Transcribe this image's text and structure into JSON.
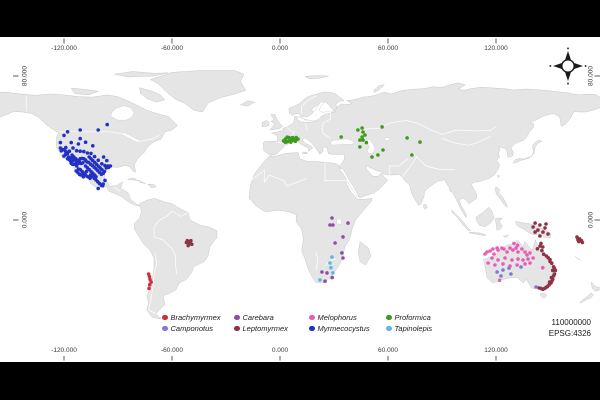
{
  "footer": {
    "scale": "110000000",
    "crs": "EPSG:4326"
  },
  "icons": {
    "compass": "compass-rose"
  },
  "chart_data": {
    "type": "scatter",
    "subtype": "geographic-point-map",
    "title": "",
    "projection": "EPSG:4326 equirectangular",
    "basemap": "world countries, light gray fill with white borders",
    "legend_position": "bottom",
    "axes": {
      "x_tick_values": [
        -120,
        -60,
        0,
        60,
        120
      ],
      "x_tick_labels": [
        "-120.000",
        "-60.000",
        "0.000",
        "60.000",
        "120.000"
      ],
      "y_tick_values": [
        80,
        0
      ],
      "y_tick_labels": [
        "80.000",
        "0.000"
      ],
      "x_range": [
        -155,
        178
      ],
      "y_range": [
        -82,
        102
      ]
    },
    "series": [
      {
        "name": "Brachymyrmex",
        "color": "#cf2e3d",
        "points": [
          [
            -73,
            -30
          ],
          [
            -72.5,
            -31.5
          ],
          [
            -72.2,
            -33
          ],
          [
            -71.6,
            -34.5
          ],
          [
            -72.4,
            -36
          ],
          [
            -72.8,
            -38
          ]
        ]
      },
      {
        "name": "Camponotus",
        "color": "#7d7ad2",
        "points": [
          [
            120.6,
            -28.9
          ],
          [
            123.9,
            -27.8
          ],
          [
            127.2,
            -26.7
          ],
          [
            133.9,
            -26.1
          ],
          [
            122.8,
            -31.1
          ],
          [
            128.3,
            -30
          ],
          [
            142.2,
            -37.2
          ]
        ]
      },
      {
        "name": "Carebara",
        "color": "#8d4fa1",
        "points": [
          [
            28.9,
            1.1
          ],
          [
            27.8,
            -2.8
          ],
          [
            29.4,
            -2.8
          ],
          [
            37.8,
            -1.7
          ],
          [
            35,
            -9.4
          ],
          [
            30.6,
            -12.8
          ],
          [
            34.4,
            -18.3
          ],
          [
            35,
            -21.1
          ],
          [
            23.3,
            -28.9
          ],
          [
            26.1,
            -29.4
          ],
          [
            29,
            -32
          ],
          [
            25,
            -34
          ]
        ]
      },
      {
        "name": "Leptomyrmex",
        "color": "#8c3346",
        "points": [
          [
            -51.5,
            -11.5
          ],
          [
            -49.5,
            -11.5
          ],
          [
            -52,
            -12.5
          ],
          [
            -50,
            -13
          ],
          [
            -51,
            -14.2
          ],
          [
            -49,
            -13.5
          ],
          [
            -50.5,
            -12.3
          ],
          [
            141.7,
            -1.7
          ],
          [
            144.4,
            -2.8
          ],
          [
            147.2,
            -4.4
          ],
          [
            143.3,
            -5.6
          ],
          [
            146.1,
            -6.7
          ],
          [
            148.9,
            -7.8
          ],
          [
            141.7,
            -6.7
          ],
          [
            144.4,
            -8.9
          ],
          [
            147.8,
            -2.2
          ],
          [
            140.6,
            -3.9
          ],
          [
            145,
            -13
          ],
          [
            146,
            -15
          ],
          [
            145.5,
            -17
          ],
          [
            146.5,
            -19
          ],
          [
            148,
            -20
          ],
          [
            149,
            -21
          ],
          [
            150,
            -22
          ],
          [
            151,
            -24
          ],
          [
            152,
            -26
          ],
          [
            152.5,
            -27
          ],
          [
            153,
            -28
          ],
          [
            152.5,
            -30
          ],
          [
            152,
            -31
          ],
          [
            151.5,
            -33
          ],
          [
            151,
            -34
          ],
          [
            150.5,
            -35
          ],
          [
            149.5,
            -36
          ],
          [
            148.5,
            -37
          ],
          [
            147,
            -38
          ],
          [
            146,
            -38.5
          ],
          [
            145,
            -38
          ],
          [
            150,
            -23
          ],
          [
            151.5,
            -28
          ],
          [
            150.8,
            -32
          ],
          [
            149.8,
            -34.5
          ],
          [
            147.8,
            -37.5
          ],
          [
            144,
            -37.8
          ],
          [
            143,
            -16
          ],
          [
            144.5,
            -14.5
          ],
          [
            165,
            -9.5
          ],
          [
            166.5,
            -10.5
          ],
          [
            167.5,
            -11.5
          ],
          [
            166,
            -12
          ],
          [
            168,
            -12.5
          ],
          [
            165.5,
            -11
          ]
        ]
      },
      {
        "name": "Melophorus",
        "color": "#e75fb5",
        "points": [
          [
            113.9,
            -18.9
          ],
          [
            115,
            -17.8
          ],
          [
            116.7,
            -17.2
          ],
          [
            118.3,
            -16.1
          ],
          [
            118.9,
            -18.9
          ],
          [
            120.6,
            -15.6
          ],
          [
            121.1,
            -16.7
          ],
          [
            123.3,
            -15.6
          ],
          [
            124.4,
            -16.1
          ],
          [
            126.1,
            -17.8
          ],
          [
            127.8,
            -15.6
          ],
          [
            129.4,
            -16.7
          ],
          [
            131.1,
            -15.6
          ],
          [
            132.2,
            -17.8
          ],
          [
            134.4,
            -16.1
          ],
          [
            136.1,
            -17.8
          ],
          [
            137.2,
            -19.4
          ],
          [
            138.9,
            -18.3
          ],
          [
            117.8,
            -21.1
          ],
          [
            121.1,
            -22.2
          ],
          [
            125,
            -21.1
          ],
          [
            128.9,
            -22.2
          ],
          [
            132.2,
            -21.7
          ],
          [
            135,
            -22.2
          ],
          [
            137.8,
            -21.7
          ],
          [
            115.6,
            -23.9
          ],
          [
            119.4,
            -25
          ],
          [
            123.9,
            -24.4
          ],
          [
            127.8,
            -25.6
          ],
          [
            131.7,
            -25
          ],
          [
            136.1,
            -24.4
          ],
          [
            138.9,
            -23.9
          ],
          [
            140.6,
            -21.1
          ],
          [
            130,
            -13
          ],
          [
            132,
            -14
          ],
          [
            122,
            -33.5
          ],
          [
            146,
            -26.5
          ]
        ]
      },
      {
        "name": "Myrmecocystus",
        "color": "#2330c4",
        "points": [
          [
            -122,
            40
          ],
          [
            -121.5,
            38.5
          ],
          [
            -120,
            35.5
          ],
          [
            -119,
            36.5
          ],
          [
            -118,
            34
          ],
          [
            -117.5,
            35
          ],
          [
            -117,
            33.5
          ],
          [
            -116.3,
            32.7
          ],
          [
            -120,
            39
          ],
          [
            -119,
            38
          ],
          [
            -116,
            34.5
          ],
          [
            -115.5,
            36
          ],
          [
            -114.5,
            35
          ],
          [
            -113.5,
            34
          ],
          [
            -112.5,
            33.2
          ],
          [
            -111.5,
            32.3
          ],
          [
            -110.5,
            31.4
          ],
          [
            -109.5,
            31.8
          ],
          [
            -115,
            33
          ],
          [
            -114,
            33.5
          ],
          [
            -113,
            32
          ],
          [
            -112,
            31.5
          ],
          [
            -111,
            34
          ],
          [
            -110,
            34.2
          ],
          [
            -109,
            34
          ],
          [
            -108,
            33.2
          ],
          [
            -107.2,
            32.2
          ],
          [
            -106.3,
            32
          ],
          [
            -105.2,
            31
          ],
          [
            -104.2,
            30.2
          ],
          [
            -103.2,
            29.3
          ],
          [
            -102.2,
            28.4
          ],
          [
            -101.2,
            27.4
          ],
          [
            -100.2,
            26.4
          ],
          [
            -99.2,
            25.4
          ],
          [
            -98.2,
            26
          ],
          [
            -106,
            35
          ],
          [
            -105,
            34
          ],
          [
            -104,
            33
          ],
          [
            -103,
            32
          ],
          [
            -102,
            31
          ],
          [
            -101,
            30
          ],
          [
            -100,
            29
          ],
          [
            -99,
            28
          ],
          [
            -97.5,
            27
          ],
          [
            -108,
            30
          ],
          [
            -107,
            29
          ],
          [
            -106,
            28
          ],
          [
            -105,
            27
          ],
          [
            -104,
            26
          ],
          [
            -103,
            25
          ],
          [
            -102.2,
            24
          ],
          [
            -110,
            27
          ],
          [
            -109,
            26
          ],
          [
            -112,
            28.3
          ],
          [
            -113,
            30
          ],
          [
            -114,
            31
          ],
          [
            -111,
            28
          ],
          [
            -110.3,
            25
          ],
          [
            -109.2,
            24
          ],
          [
            -108.2,
            25.2
          ],
          [
            -107.2,
            24.3
          ],
          [
            -106.2,
            23.8
          ],
          [
            -112.2,
            26.2
          ],
          [
            -111.2,
            25.2
          ],
          [
            -113.2,
            27.2
          ],
          [
            -116,
            31.5
          ],
          [
            -115.2,
            31
          ],
          [
            -105.2,
            25
          ],
          [
            -104.2,
            24.2
          ],
          [
            -103.2,
            23.2
          ],
          [
            -102.2,
            22.2
          ],
          [
            -101.2,
            21.2
          ],
          [
            -100.2,
            20.2
          ],
          [
            -99.2,
            19.3
          ],
          [
            -98.2,
            20
          ],
          [
            -97.2,
            22
          ],
          [
            -105.5,
            23.2
          ],
          [
            -107.5,
            27
          ],
          [
            -96.5,
            29
          ],
          [
            -95.5,
            30
          ],
          [
            -118,
            37
          ],
          [
            -117,
            38.2
          ],
          [
            -115,
            40
          ],
          [
            -113,
            38.5
          ],
          [
            -111,
            38.2
          ],
          [
            -109,
            38
          ],
          [
            -107,
            37.2
          ],
          [
            -105,
            37
          ],
          [
            -103,
            35.2
          ],
          [
            -101,
            33.2
          ],
          [
            -99,
            31.2
          ],
          [
            -97.2,
            30.2
          ],
          [
            -119,
            40.2
          ],
          [
            -121,
            39.2
          ],
          [
            -116,
            43
          ],
          [
            -112,
            42.2
          ],
          [
            -108,
            43.2
          ],
          [
            -104,
            41.2
          ],
          [
            -120,
            47
          ],
          [
            -111,
            45.2
          ],
          [
            -98,
            35
          ],
          [
            -96.2,
            33
          ],
          [
            -95.2,
            29.2
          ],
          [
            -94.2,
            30
          ],
          [
            -122,
            43
          ],
          [
            -118,
            49
          ],
          [
            -111,
            50
          ],
          [
            -96,
            53
          ],
          [
            -101,
            50
          ],
          [
            -101,
            17.5
          ],
          [
            -98.5,
            19
          ]
        ]
      },
      {
        "name": "Proformica",
        "color": "#3f9a1e",
        "points": [
          [
            2,
            44
          ],
          [
            3,
            45
          ],
          [
            4,
            43.5
          ],
          [
            5,
            44
          ],
          [
            6,
            45
          ],
          [
            7,
            44.2
          ],
          [
            8,
            45
          ],
          [
            3,
            43.2
          ],
          [
            5,
            45.8
          ],
          [
            7,
            45.8
          ],
          [
            9,
            44.5
          ],
          [
            10,
            45
          ],
          [
            4,
            46
          ],
          [
            6,
            43.3
          ],
          [
            9,
            45.8
          ],
          [
            2.5,
            43.6
          ],
          [
            8.5,
            43.8
          ],
          [
            34,
            46.1
          ],
          [
            43.3,
            50
          ],
          [
            45.6,
            51.1
          ],
          [
            46.1,
            48.9
          ],
          [
            47.2,
            47.2
          ],
          [
            45.6,
            46.1
          ],
          [
            44.4,
            44.4
          ],
          [
            46.1,
            44.4
          ],
          [
            44.4,
            40.6
          ],
          [
            56.7,
            51.7
          ],
          [
            57.2,
            38.9
          ],
          [
            51.1,
            35
          ],
          [
            54.4,
            36.1
          ],
          [
            70.6,
            45.6
          ],
          [
            77.8,
            43.3
          ],
          [
            73.3,
            36.1
          ],
          [
            48,
            43
          ]
        ]
      },
      {
        "name": "Tapinolepis",
        "color": "#5fb5e6",
        "points": [
          [
            28.9,
            -20.6
          ],
          [
            27.8,
            -23.9
          ],
          [
            29.4,
            -29.4
          ],
          [
            22.2,
            -33.3
          ],
          [
            28.3,
            -26.5
          ]
        ]
      }
    ]
  }
}
